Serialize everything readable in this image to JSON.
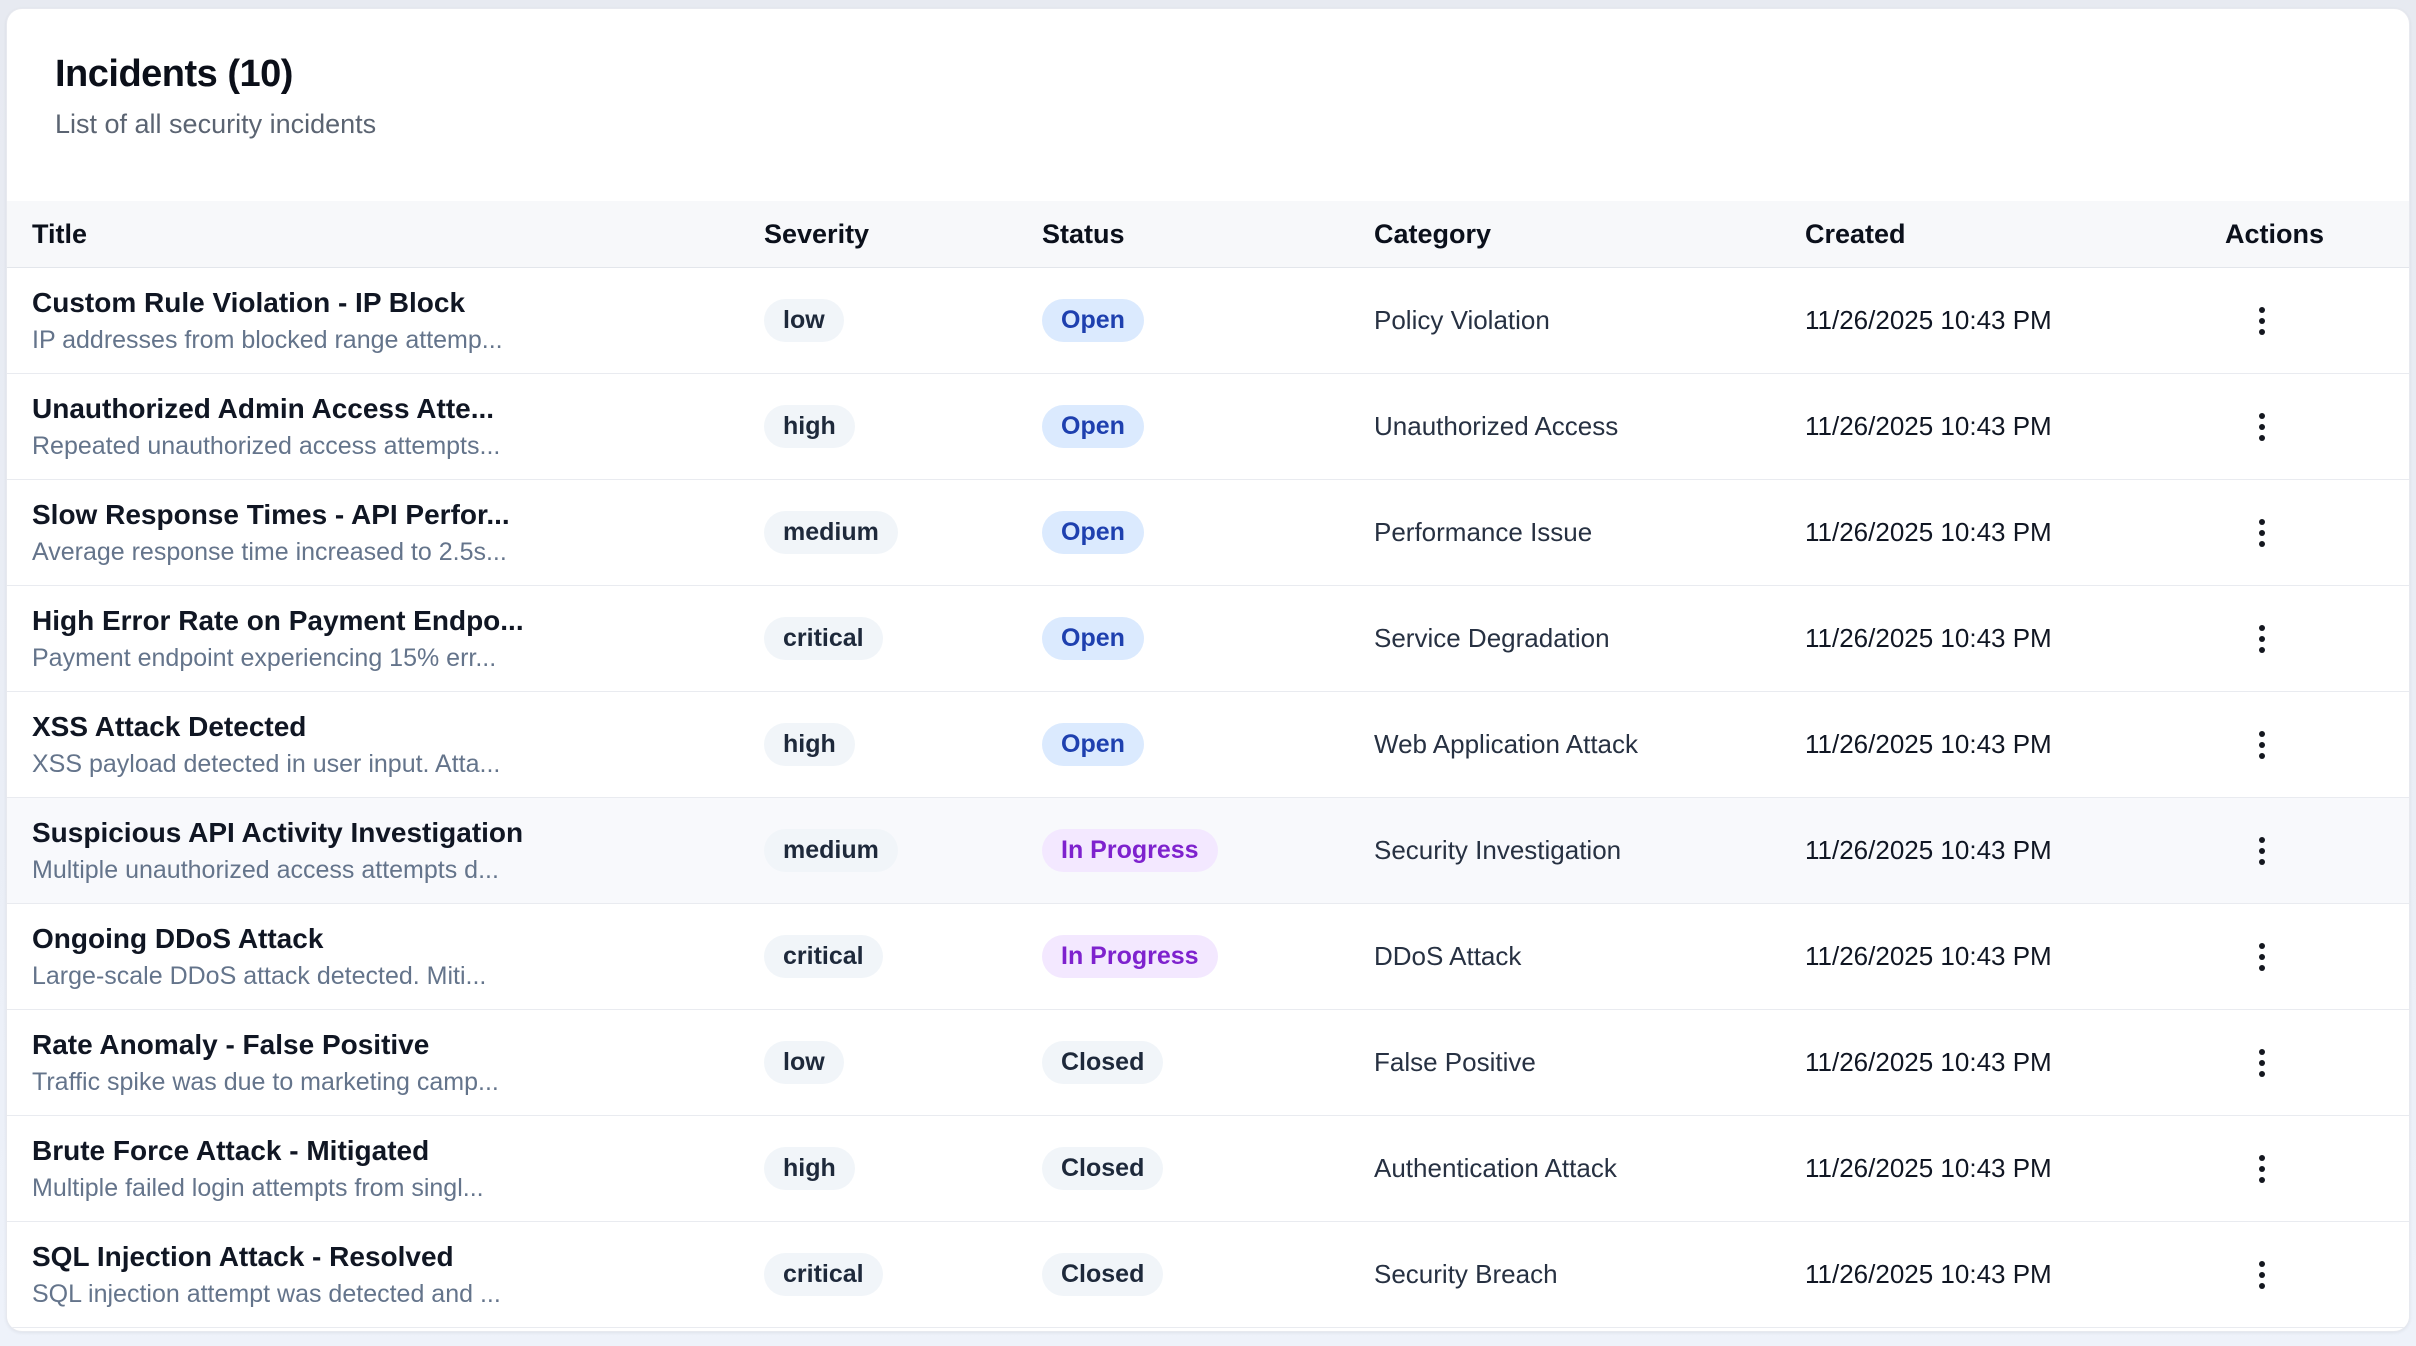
{
  "page": {
    "title": "Incidents (10)",
    "subtitle": "List of all security incidents"
  },
  "colors": {
    "status_open_bg": "#dbeafe",
    "status_open_text": "#1e40af",
    "status_in_progress_bg": "#f3e8ff",
    "status_in_progress_text": "#7e22ce",
    "status_closed_bg": "#f1f5f9",
    "status_closed_text": "#1e293b",
    "severity_badge_bg": "#f1f5f9",
    "severity_badge_text": "#1e293b"
  },
  "icons": {
    "row_actions": "kebab-vertical-icon"
  },
  "table": {
    "columns": [
      "Title",
      "Severity",
      "Status",
      "Category",
      "Created",
      "Actions"
    ],
    "rows": [
      {
        "title": "Custom Rule Violation - IP Block",
        "description": "IP addresses from blocked range attemp...",
        "severity": "low",
        "status": "Open",
        "category": "Policy Violation",
        "created": "11/26/2025 10:43 PM",
        "highlighted": false
      },
      {
        "title": "Unauthorized Admin Access Atte...",
        "description": "Repeated unauthorized access attempts...",
        "severity": "high",
        "status": "Open",
        "category": "Unauthorized Access",
        "created": "11/26/2025 10:43 PM",
        "highlighted": false
      },
      {
        "title": "Slow Response Times - API Perfor...",
        "description": "Average response time increased to 2.5s...",
        "severity": "medium",
        "status": "Open",
        "category": "Performance Issue",
        "created": "11/26/2025 10:43 PM",
        "highlighted": false
      },
      {
        "title": "High Error Rate on Payment Endpo...",
        "description": "Payment endpoint experiencing 15% err...",
        "severity": "critical",
        "status": "Open",
        "category": "Service Degradation",
        "created": "11/26/2025 10:43 PM",
        "highlighted": false
      },
      {
        "title": "XSS Attack Detected",
        "description": "XSS payload detected in user input. Atta...",
        "severity": "high",
        "status": "Open",
        "category": "Web Application Attack",
        "created": "11/26/2025 10:43 PM",
        "highlighted": false
      },
      {
        "title": "Suspicious API Activity Investigation",
        "description": "Multiple unauthorized access attempts d...",
        "severity": "medium",
        "status": "In Progress",
        "category": "Security Investigation",
        "created": "11/26/2025 10:43 PM",
        "highlighted": true
      },
      {
        "title": "Ongoing DDoS Attack",
        "description": "Large-scale DDoS attack detected. Miti...",
        "severity": "critical",
        "status": "In Progress",
        "category": "DDoS Attack",
        "created": "11/26/2025 10:43 PM",
        "highlighted": false
      },
      {
        "title": "Rate Anomaly - False Positive",
        "description": "Traffic spike was due to marketing camp...",
        "severity": "low",
        "status": "Closed",
        "category": "False Positive",
        "created": "11/26/2025 10:43 PM",
        "highlighted": false
      },
      {
        "title": "Brute Force Attack - Mitigated",
        "description": "Multiple failed login attempts from singl...",
        "severity": "high",
        "status": "Closed",
        "category": "Authentication Attack",
        "created": "11/26/2025 10:43 PM",
        "highlighted": false
      },
      {
        "title": "SQL Injection Attack - Resolved",
        "description": "SQL injection attempt was detected and ...",
        "severity": "critical",
        "status": "Closed",
        "category": "Security Breach",
        "created": "11/26/2025 10:43 PM",
        "highlighted": false
      }
    ]
  }
}
